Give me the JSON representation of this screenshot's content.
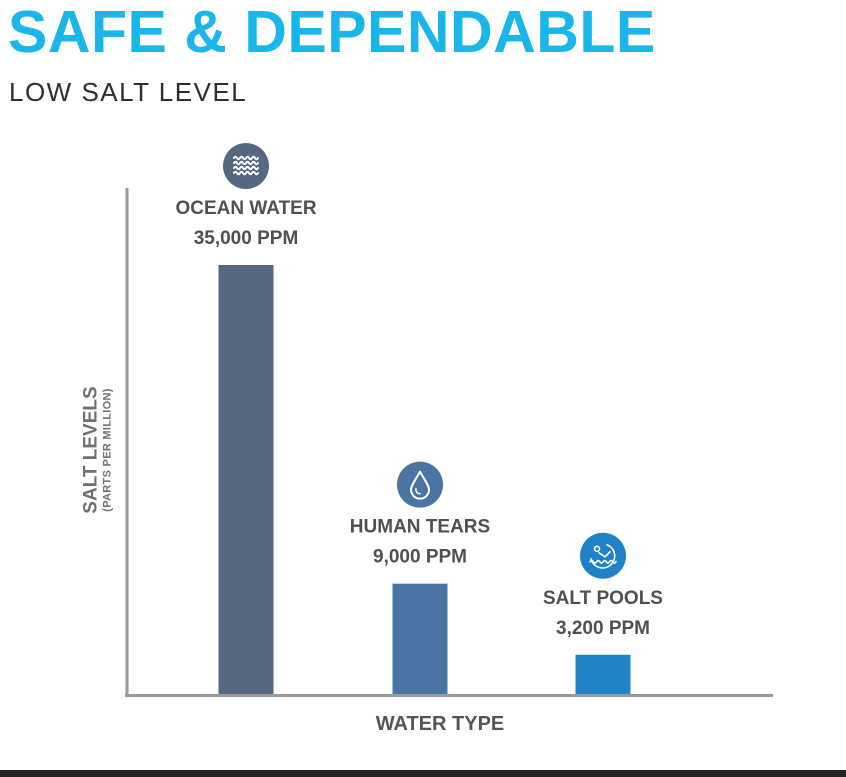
{
  "header": {
    "title": "SAFE & DEPENDABLE",
    "subtitle": "LOW SALT LEVEL"
  },
  "chart_data": {
    "type": "bar",
    "categories": [
      "OCEAN WATER",
      "HUMAN TEARS",
      "SALT POOLS"
    ],
    "values": [
      35000,
      9000,
      3200
    ],
    "value_labels": [
      "35,000 PPM",
      "9,000 PPM",
      "3,200 PPM"
    ],
    "icons": [
      "waves-icon",
      "water-drop-icon",
      "swimmer-icon"
    ],
    "colors": [
      "#566880",
      "#4a74a4",
      "#2082c6"
    ],
    "title": "SAFE & DEPENDABLE",
    "subtitle": "LOW SALT LEVEL",
    "xlabel": "WATER TYPE",
    "ylabel": "SALT LEVELS",
    "ylabel_sub": "(PARTS PER MILLION)",
    "grid": false
  },
  "colors": {
    "title": "#1bb6e9",
    "axis": "#9a9a9a"
  }
}
